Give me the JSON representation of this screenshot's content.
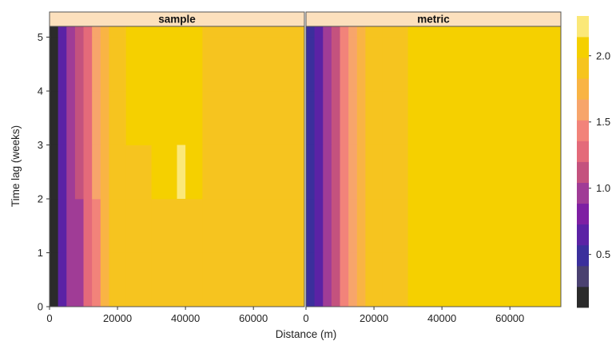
{
  "chart_data": {
    "type": "heatmap",
    "xlabel": "Distance (m)",
    "ylabel": "Time lag (weeks)",
    "x_ticks": [
      0,
      20000,
      40000,
      60000
    ],
    "x_tick_labels": [
      "0",
      "20000",
      "40000",
      "60000"
    ],
    "y_ticks": [
      0,
      1,
      2,
      3,
      4,
      5
    ],
    "y_tick_labels": [
      "0",
      "1",
      "2",
      "3",
      "4",
      "5"
    ],
    "xlim": [
      0,
      75000
    ],
    "ylim": [
      0,
      5.2
    ],
    "x_bin_edges": [
      0,
      2500,
      5000,
      7500,
      10000,
      12500,
      15000,
      17500,
      22500,
      30000,
      45000,
      75000
    ],
    "y_bin_edges": [
      0,
      1,
      2,
      3,
      4,
      5,
      5.2
    ],
    "grid": false,
    "colorbar": {
      "ticks": [
        0.5,
        1.0,
        1.5,
        2.0
      ],
      "tick_labels": [
        "0.5",
        "1.0",
        "1.5",
        "2.0"
      ],
      "range": [
        0.1,
        2.3
      ],
      "colors": [
        "#2b2b2b",
        "#4a4170",
        "#3b2f9c",
        "#5b22a5",
        "#7e1fa3",
        "#a03c96",
        "#c4527e",
        "#e46a7a",
        "#f2837a",
        "#f7a56b",
        "#f9b444",
        "#f6c41f",
        "#f5d000",
        "#fbe878"
      ]
    },
    "panels": [
      {
        "name": "sample",
        "z": [
          [
            0.2,
            0.6,
            0.9,
            1.0,
            1.2,
            1.5,
            1.7,
            1.85,
            1.95,
            1.95,
            1.95
          ],
          [
            0.2,
            0.6,
            0.9,
            1.0,
            1.2,
            1.5,
            1.7,
            1.85,
            1.95,
            1.95,
            1.95
          ],
          [
            0.2,
            0.6,
            0.9,
            1.1,
            1.35,
            1.6,
            1.75,
            1.85,
            1.95,
            2.05,
            1.95
          ],
          [
            0.2,
            0.6,
            0.9,
            1.1,
            1.35,
            1.6,
            1.75,
            1.9,
            2.05,
            2.05,
            1.95
          ],
          [
            0.2,
            0.6,
            0.9,
            1.1,
            1.35,
            1.6,
            1.75,
            1.9,
            2.05,
            2.05,
            1.95
          ],
          [
            0.2,
            0.6,
            0.9,
            1.1,
            1.35,
            1.6,
            1.75,
            1.9,
            2.05,
            2.05,
            1.95
          ]
        ],
        "highlights": [
          {
            "x": [
              37500,
              40000
            ],
            "y": [
              2,
              3
            ],
            "z": 2.25
          }
        ]
      },
      {
        "name": "metric",
        "z": [
          [
            0.45,
            0.65,
            0.95,
            1.15,
            1.4,
            1.55,
            1.7,
            1.85,
            1.95,
            2.05,
            2.05
          ],
          [
            0.45,
            0.65,
            0.95,
            1.15,
            1.4,
            1.55,
            1.7,
            1.85,
            1.95,
            2.05,
            2.05
          ],
          [
            0.45,
            0.65,
            0.95,
            1.15,
            1.4,
            1.55,
            1.7,
            1.85,
            1.95,
            2.05,
            2.05
          ],
          [
            0.45,
            0.65,
            0.95,
            1.15,
            1.4,
            1.55,
            1.7,
            1.85,
            1.95,
            2.05,
            2.05
          ],
          [
            0.45,
            0.65,
            0.95,
            1.15,
            1.4,
            1.55,
            1.7,
            1.85,
            1.95,
            2.05,
            2.05
          ],
          [
            0.45,
            0.65,
            0.95,
            1.15,
            1.4,
            1.55,
            1.7,
            1.85,
            1.95,
            2.05,
            2.05
          ]
        ],
        "highlights": []
      }
    ]
  }
}
